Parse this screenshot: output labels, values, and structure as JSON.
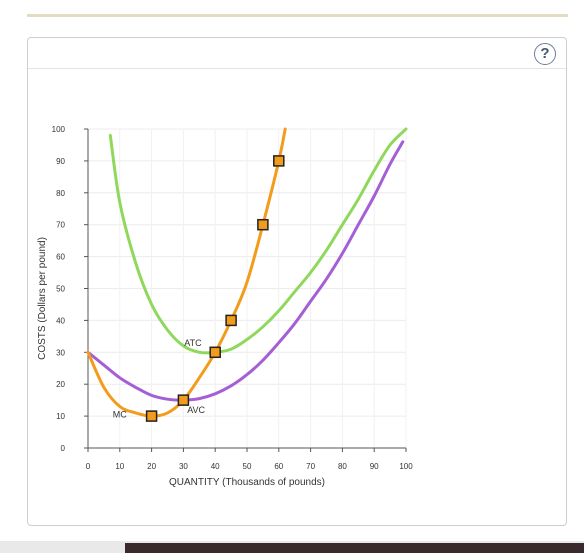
{
  "help_icon": "question-mark-icon",
  "help_label": "?",
  "chart_data": {
    "type": "line",
    "xlabel": "QUANTITY (Thousands of pounds)",
    "ylabel": "COSTS (Dollars per pound)",
    "xlim": [
      0,
      100
    ],
    "ylim": [
      0,
      100
    ],
    "x_ticks": [
      "0",
      "10",
      "20",
      "30",
      "40",
      "50",
      "60",
      "70",
      "80",
      "90",
      "100"
    ],
    "y_ticks": [
      "0",
      "10",
      "20",
      "30",
      "40",
      "50",
      "60",
      "70",
      "80",
      "90",
      "100"
    ],
    "grid": true,
    "series": [
      {
        "name": "ATC",
        "color": "#8fd85c",
        "x": [
          7,
          10,
          15,
          20,
          25,
          30,
          35,
          40,
          45,
          50,
          55,
          60,
          65,
          70,
          75,
          80,
          85,
          90,
          95,
          100
        ],
        "y": [
          98,
          77,
          58,
          45,
          37,
          32,
          30,
          30,
          31,
          34,
          38,
          43,
          49,
          55,
          62,
          70,
          78,
          87,
          95,
          100
        ]
      },
      {
        "name": "AVC",
        "color": "#a45ed6",
        "x": [
          0,
          5,
          10,
          15,
          20,
          25,
          30,
          35,
          40,
          45,
          50,
          55,
          60,
          65,
          70,
          75,
          80,
          85,
          90,
          95,
          99
        ],
        "y": [
          30,
          26,
          22,
          19,
          16.5,
          15.3,
          15,
          15.5,
          17,
          19.5,
          23,
          27.5,
          33,
          39,
          46,
          53,
          61,
          70,
          79,
          89,
          96
        ]
      },
      {
        "name": "MC",
        "color": "#f39b1a",
        "x": [
          0,
          5,
          10,
          15,
          20,
          25,
          30,
          35,
          40,
          45,
          50,
          55,
          60,
          62
        ],
        "y": [
          30,
          19,
          13,
          11,
          10,
          11,
          15,
          22,
          30,
          40,
          52,
          70,
          90,
          100
        ],
        "markers": [
          {
            "x": 20,
            "y": 10
          },
          {
            "x": 30,
            "y": 15
          },
          {
            "x": 40,
            "y": 30
          },
          {
            "x": 45,
            "y": 40
          },
          {
            "x": 55,
            "y": 70
          },
          {
            "x": 60,
            "y": 90
          }
        ]
      }
    ],
    "annotations": [
      {
        "text": "ATC",
        "x": 33,
        "y": 32
      },
      {
        "text": "AVC",
        "x": 34,
        "y": 11
      },
      {
        "text": "MC",
        "x": 10,
        "y": 9.5
      }
    ]
  }
}
